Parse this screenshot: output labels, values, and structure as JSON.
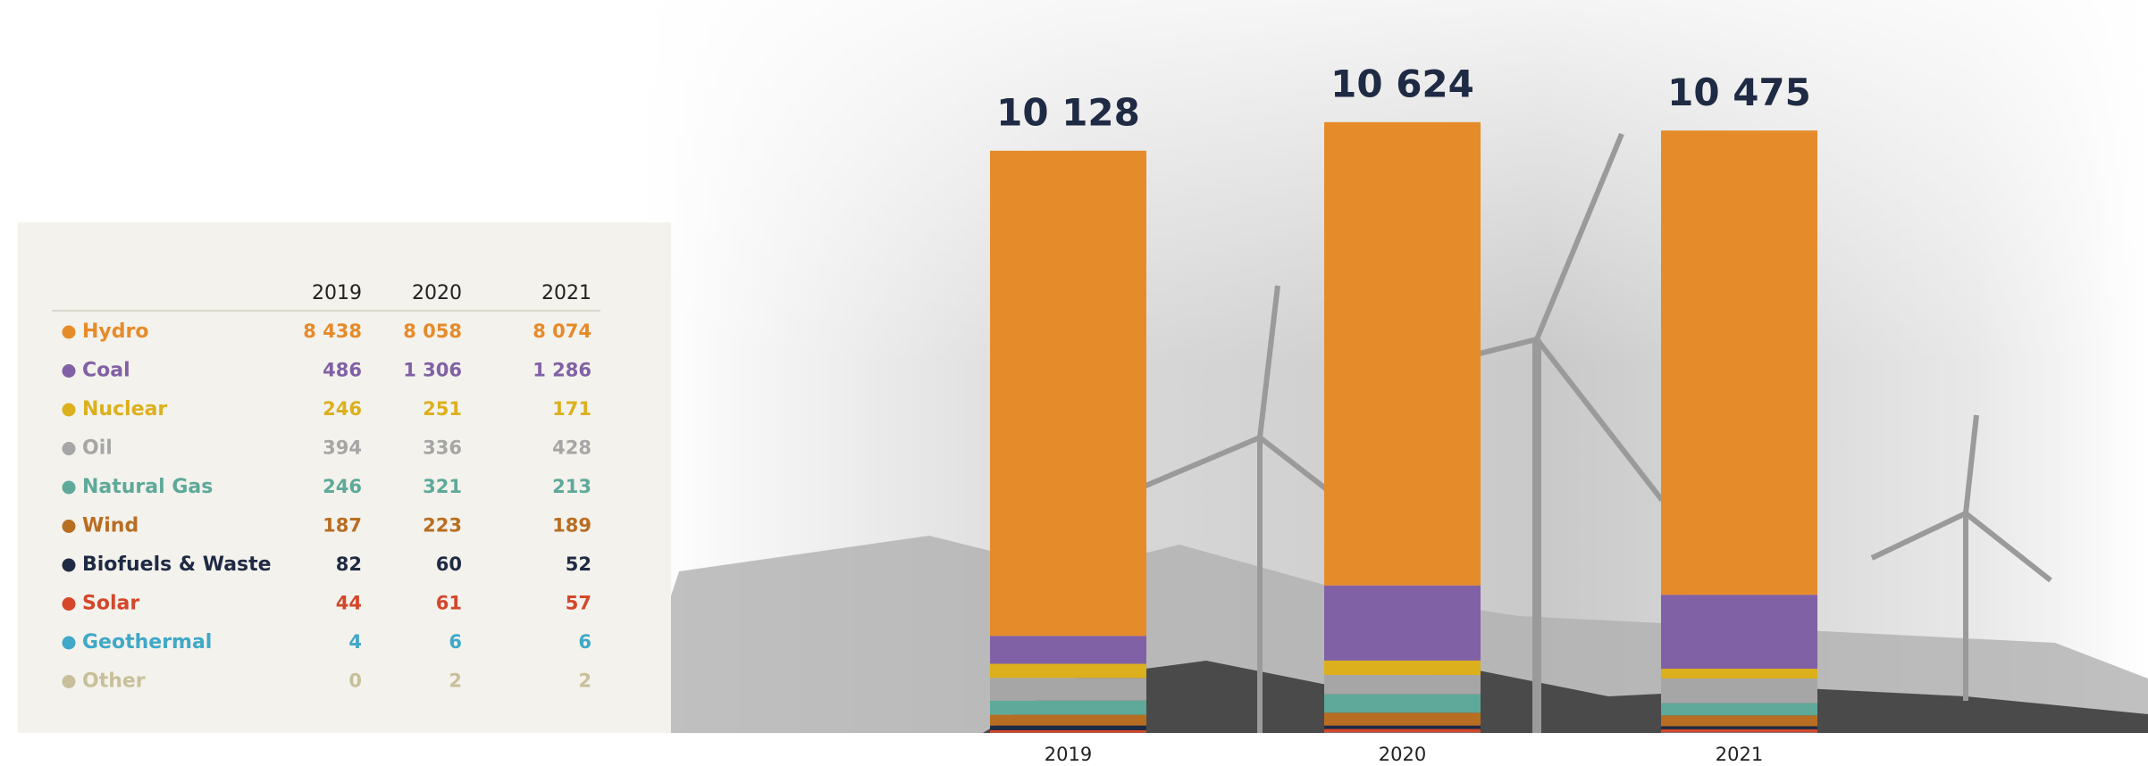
{
  "chart_data": {
    "type": "stacked_bar",
    "categories": [
      "2019",
      "2020",
      "2021"
    ],
    "series": [
      {
        "name": "Hydro",
        "color": "#e68b2a",
        "values": [
          8438,
          8058,
          8074
        ],
        "value_labels": [
          "8 438",
          "8 058",
          "8 074"
        ]
      },
      {
        "name": "Coal",
        "color": "#8161a5",
        "values": [
          486,
          1306,
          1286
        ],
        "value_labels": [
          "486",
          "1 306",
          "1 286"
        ]
      },
      {
        "name": "Nuclear",
        "color": "#dcb01d",
        "values": [
          246,
          251,
          171
        ]
      },
      {
        "name": "Oil",
        "color": "#a6a6a6",
        "values": [
          394,
          336,
          428
        ]
      },
      {
        "name": "Natural Gas",
        "color": "#5ea99a",
        "values": [
          246,
          321,
          213
        ]
      },
      {
        "name": "Wind",
        "color": "#b86e22",
        "values": [
          187,
          223,
          189
        ]
      },
      {
        "name": "Biofuels & Waste",
        "color": "#1f2a44",
        "values": [
          82,
          60,
          52
        ]
      },
      {
        "name": "Solar",
        "color": "#d4472b",
        "values": [
          44,
          61,
          57
        ]
      },
      {
        "name": "Geothermal",
        "color": "#40a8c8",
        "values": [
          4,
          6,
          6
        ]
      },
      {
        "name": "Other",
        "color": "#c8c09a",
        "values": [
          0,
          2,
          2
        ]
      }
    ],
    "totals": {
      "values": [
        10128,
        10624,
        10475
      ],
      "value_labels": [
        "10 128",
        "10 624",
        "10 475"
      ]
    }
  }
}
